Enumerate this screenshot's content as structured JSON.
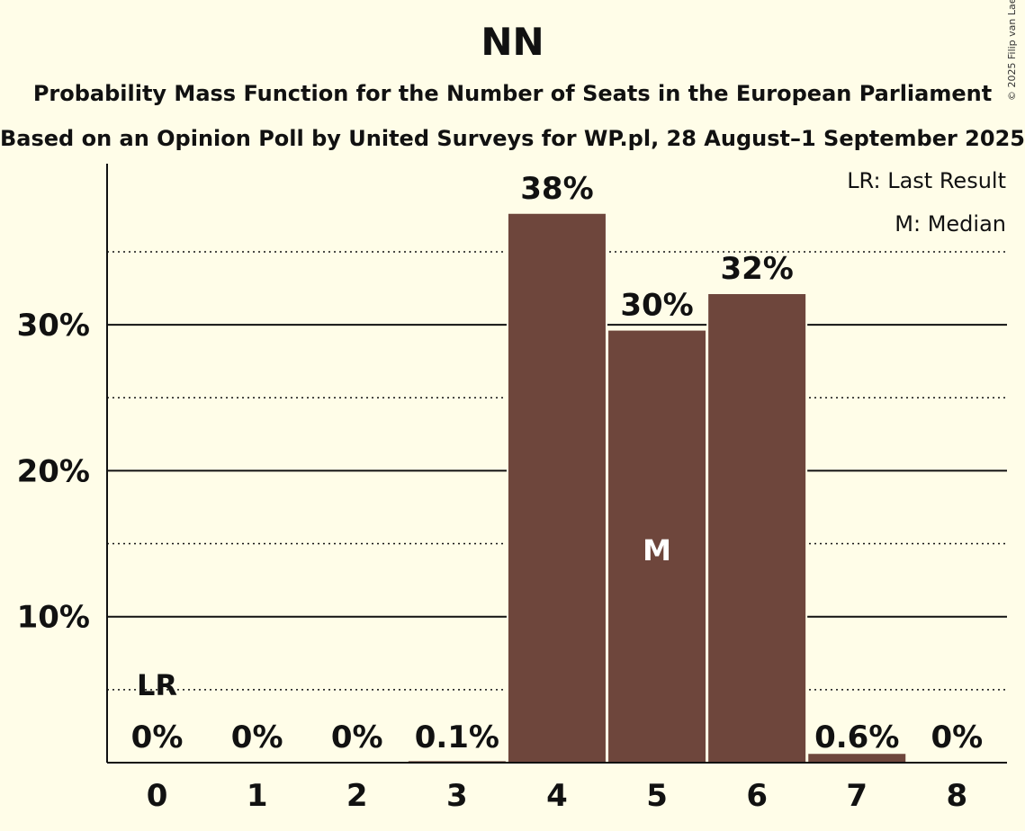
{
  "title": "NN",
  "subtitle1": "Probability Mass Function for the Number of Seats in the European Parliament",
  "subtitle2": "Based on an Opinion Poll by United Surveys for WP.pl, 28 August–1 September 2025",
  "copyright": "© 2025 Filip van Laenen",
  "legend": {
    "last_result": "LR: Last Result",
    "median": "M: Median"
  },
  "colors": {
    "bar": "#6e463c",
    "background": "#fffde8"
  },
  "chart_data": {
    "type": "bar",
    "categories": [
      "0",
      "1",
      "2",
      "3",
      "4",
      "5",
      "6",
      "7",
      "8"
    ],
    "values": [
      0,
      0,
      0,
      0.1,
      37.6,
      29.6,
      32.1,
      0.6,
      0
    ],
    "labels": [
      "0%",
      "0%",
      "0%",
      "0.1%",
      "38%",
      "30%",
      "32%",
      "0.6%",
      "0%"
    ],
    "yticks": [
      "10%",
      "20%",
      "30%"
    ],
    "ytick_values": [
      10,
      20,
      30
    ],
    "ylim": [
      0,
      41
    ],
    "minor_gridlines": [
      5,
      15,
      25,
      35
    ],
    "last_result_category": "0",
    "last_result_marker": "LR",
    "median_category": "5",
    "median_marker": "M",
    "legend_position": "top-right",
    "grid": true
  }
}
